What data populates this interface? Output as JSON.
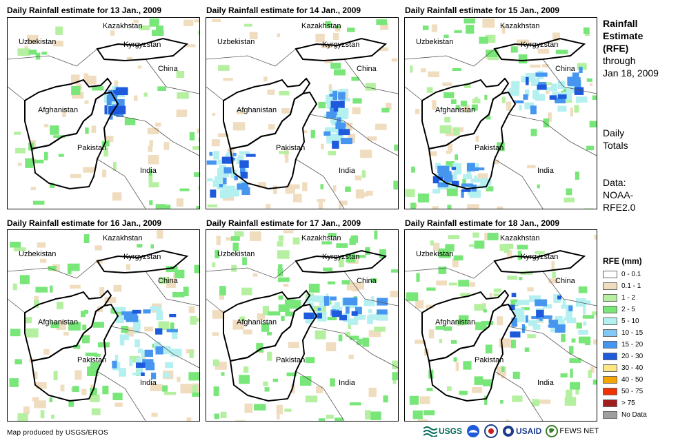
{
  "panels": [
    {
      "title": "Daily Rainfall estimate for 13 Jan., 2009"
    },
    {
      "title": "Daily Rainfall estimate for 14 Jan., 2009"
    },
    {
      "title": "Daily Rainfall estimate for 15 Jan., 2009"
    },
    {
      "title": "Daily Rainfall estimate for 16 Jan., 2009"
    },
    {
      "title": "Daily Rainfall estimate for 17 Jan., 2009"
    },
    {
      "title": "Daily Rainfall estimate for 18 Jan., 2009"
    }
  ],
  "map_labels": {
    "kazakhstan": "Kazakhstan",
    "kyrgyzstan": "Kyrgyzstan",
    "uzbekistan": "Uzbekistan",
    "china": "China",
    "afghanistan": "Afghanistan",
    "pakistan": "Pakistan",
    "india": "India"
  },
  "side": {
    "title_line1": "Rainfall",
    "title_line2": "Estimate",
    "title_line3": "(RFE)",
    "through": "through",
    "date": "Jan 18, 2009",
    "daily_line1": "Daily",
    "daily_line2": "Totals",
    "data_line1": "Data:",
    "data_line2": "NOAA-",
    "data_line3": "RFE2.0"
  },
  "legend": {
    "title": "RFE (mm)",
    "items": [
      {
        "label": "0 - 0.1",
        "color": "#ffffff"
      },
      {
        "label": "0.1 - 1",
        "color": "#f0dcbe"
      },
      {
        "label": "1 - 2",
        "color": "#b4f0a0"
      },
      {
        "label": "2 - 5",
        "color": "#78e678"
      },
      {
        "label": "5 - 10",
        "color": "#b4f0f0"
      },
      {
        "label": "10 - 15",
        "color": "#82c8f5"
      },
      {
        "label": "15 - 20",
        "color": "#4696f0"
      },
      {
        "label": "20 - 30",
        "color": "#1e5adc"
      },
      {
        "label": "30 - 40",
        "color": "#fae682"
      },
      {
        "label": "40 - 50",
        "color": "#f5a500"
      },
      {
        "label": "50 - 75",
        "color": "#f03200"
      },
      {
        "label": "> 75",
        "color": "#a01e1e"
      },
      {
        "label": "No Data",
        "color": "#a0a0a0"
      }
    ]
  },
  "footer": "Map produced by USGS/EROS",
  "logos": {
    "usgs": "USGS",
    "usaid": "USAID",
    "fewsnet": "FEWS NET"
  }
}
